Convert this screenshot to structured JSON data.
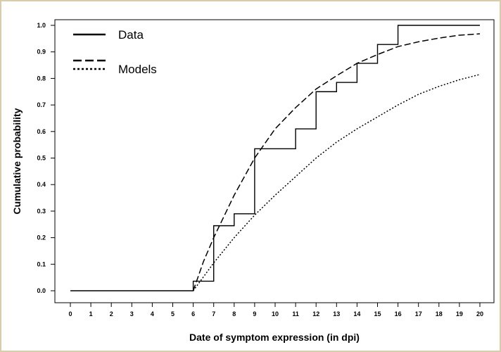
{
  "chart_data": {
    "type": "line",
    "title": "",
    "xlabel": "Date of symptom expression (in dpi)",
    "ylabel": "Cumulative probability",
    "xlim": [
      0,
      20
    ],
    "ylim": [
      0,
      1
    ],
    "x_ticks": [
      "0",
      "1",
      "2",
      "3",
      "4",
      "5",
      "6",
      "7",
      "8",
      "9",
      "10",
      "11",
      "12",
      "13",
      "14",
      "15",
      "16",
      "17",
      "18",
      "19",
      "20"
    ],
    "y_ticks": [
      "0.0",
      "0.1",
      "0.2",
      "0.3",
      "0.4",
      "0.5",
      "0.6",
      "0.7",
      "0.8",
      "0.9",
      "1.0"
    ],
    "grid": false,
    "legend_position": "top-left",
    "legend": [
      {
        "label": "Data",
        "style": "solid"
      },
      {
        "label": "Models",
        "style": "dashed"
      },
      {
        "label": "",
        "style": "dotted"
      }
    ],
    "series": [
      {
        "style": "solid",
        "kind": "step",
        "points": [
          [
            0,
            0
          ],
          [
            6,
            0
          ],
          [
            6,
            0.036
          ],
          [
            7,
            0.036
          ],
          [
            7,
            0.245
          ],
          [
            8,
            0.245
          ],
          [
            8,
            0.29
          ],
          [
            9,
            0.29
          ],
          [
            9,
            0.535
          ],
          [
            11,
            0.535
          ],
          [
            11,
            0.61
          ],
          [
            12,
            0.61
          ],
          [
            12,
            0.75
          ],
          [
            13,
            0.75
          ],
          [
            13,
            0.785
          ],
          [
            14,
            0.785
          ],
          [
            14,
            0.857
          ],
          [
            15,
            0.857
          ],
          [
            15,
            0.928
          ],
          [
            16,
            0.928
          ],
          [
            16,
            1.0
          ],
          [
            20,
            1.0
          ]
        ]
      },
      {
        "style": "dashed",
        "kind": "curve",
        "points": [
          [
            6,
            0
          ],
          [
            6.5,
            0.11
          ],
          [
            7,
            0.2
          ],
          [
            7.5,
            0.28
          ],
          [
            8,
            0.36
          ],
          [
            8.5,
            0.43
          ],
          [
            9,
            0.5
          ],
          [
            10,
            0.61
          ],
          [
            11,
            0.69
          ],
          [
            12,
            0.76
          ],
          [
            13,
            0.81
          ],
          [
            14,
            0.857
          ],
          [
            15,
            0.89
          ],
          [
            16,
            0.92
          ],
          [
            17,
            0.938
          ],
          [
            18,
            0.952
          ],
          [
            19,
            0.963
          ],
          [
            20,
            0.968
          ]
        ]
      },
      {
        "style": "dotted",
        "kind": "curve",
        "points": [
          [
            6,
            0
          ],
          [
            7,
            0.105
          ],
          [
            8,
            0.2
          ],
          [
            9,
            0.285
          ],
          [
            10,
            0.36
          ],
          [
            11,
            0.43
          ],
          [
            12,
            0.5
          ],
          [
            13,
            0.56
          ],
          [
            14,
            0.61
          ],
          [
            15,
            0.655
          ],
          [
            16,
            0.7
          ],
          [
            17,
            0.74
          ],
          [
            18,
            0.77
          ],
          [
            19,
            0.795
          ],
          [
            20,
            0.815
          ]
        ]
      }
    ]
  }
}
